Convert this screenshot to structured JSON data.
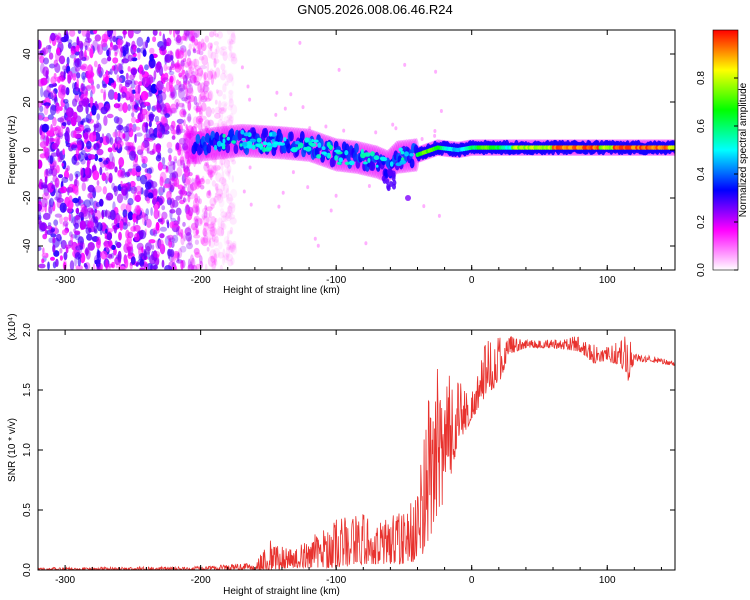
{
  "figure": {
    "title": "GN05.2026.008.06.46.R24"
  },
  "chart_data": [
    {
      "type": "heatmap",
      "title": "GN05.2026.008.06.46.R24",
      "xlabel": "Height of straight line (km)",
      "ylabel": "Frequency (Hz)",
      "xlim": [
        -320,
        150
      ],
      "ylim": [
        -50,
        50
      ],
      "x_ticks": [
        -300,
        -200,
        -100,
        0,
        100
      ],
      "y_ticks": [
        -40,
        -20,
        0,
        20,
        40
      ],
      "colorbar": {
        "label": "Normalized spectral amplitude",
        "range": [
          0,
          1
        ],
        "ticks": [
          0.0,
          0.2,
          0.4,
          0.6,
          0.8
        ],
        "tick_labels": [
          "0.0",
          "0.2",
          "0.4",
          "0.6",
          "0.8"
        ],
        "colors": [
          "#ffffff",
          "#ff00ff",
          "#0000ff",
          "#00ffff",
          "#00ff00",
          "#ffff00",
          "#ff0000"
        ]
      },
      "band": {
        "description_free": true,
        "center_track": [
          [
            -200,
            2
          ],
          [
            -170,
            4
          ],
          [
            -140,
            3
          ],
          [
            -120,
            2
          ],
          [
            -100,
            -2
          ],
          [
            -85,
            -3
          ],
          [
            -70,
            -5
          ],
          [
            -62,
            -7
          ],
          [
            -55,
            -3
          ],
          [
            -40,
            -2
          ],
          [
            -25,
            1
          ],
          [
            -10,
            0
          ],
          [
            0,
            1
          ],
          [
            20,
            1
          ],
          [
            50,
            1
          ],
          [
            80,
            1
          ],
          [
            100,
            1
          ],
          [
            130,
            1
          ],
          [
            150,
            1
          ]
        ],
        "noise_region_x": [
          -320,
          -175
        ]
      }
    },
    {
      "type": "line",
      "xlabel": "Height of straight line (km)",
      "ylabel": "SNR (10 * v/v)",
      "y_multiplier": "(x10⁴)",
      "xlim": [
        -320,
        150
      ],
      "ylim": [
        0,
        2.0
      ],
      "x_ticks": [
        -300,
        -200,
        -100,
        0,
        100
      ],
      "y_ticks": [
        0.0,
        0.5,
        1.0,
        1.5,
        2.0
      ],
      "y_tick_labels": [
        "0.0",
        "0.5",
        "1.0",
        "1.5",
        "2.0"
      ],
      "series": [
        {
          "name": "SNR",
          "color": "#e8322e",
          "envelope": [
            [
              -320,
              0.0,
              0.02
            ],
            [
              -200,
              0.0,
              0.03
            ],
            [
              -160,
              0.0,
              0.06
            ],
            [
              -150,
              0.0,
              0.25
            ],
            [
              -130,
              0.02,
              0.18
            ],
            [
              -110,
              0.02,
              0.35
            ],
            [
              -100,
              0.02,
              0.45
            ],
            [
              -90,
              0.03,
              0.45
            ],
            [
              -80,
              0.05,
              0.5
            ],
            [
              -70,
              0.05,
              0.4
            ],
            [
              -60,
              0.05,
              0.45
            ],
            [
              -50,
              0.05,
              0.5
            ],
            [
              -45,
              0.06,
              0.6
            ],
            [
              -40,
              0.08,
              0.7
            ],
            [
              -35,
              0.15,
              1.15
            ],
            [
              -30,
              0.3,
              1.75
            ],
            [
              -25,
              0.4,
              1.7
            ],
            [
              -20,
              0.55,
              1.55
            ],
            [
              -15,
              0.8,
              1.7
            ],
            [
              -10,
              1.05,
              1.6
            ],
            [
              -5,
              1.15,
              1.55
            ],
            [
              0,
              1.25,
              1.5
            ],
            [
              10,
              1.45,
              1.9
            ],
            [
              20,
              1.55,
              1.95
            ],
            [
              28,
              1.8,
              1.95
            ],
            [
              40,
              1.85,
              1.92
            ],
            [
              60,
              1.85,
              1.92
            ],
            [
              80,
              1.82,
              1.96
            ],
            [
              90,
              1.72,
              1.9
            ],
            [
              100,
              1.74,
              1.86
            ],
            [
              110,
              1.7,
              1.92
            ],
            [
              115,
              1.55,
              1.98
            ],
            [
              120,
              1.74,
              1.8
            ],
            [
              135,
              1.73,
              1.78
            ],
            [
              150,
              1.7,
              1.74
            ]
          ]
        }
      ]
    }
  ]
}
